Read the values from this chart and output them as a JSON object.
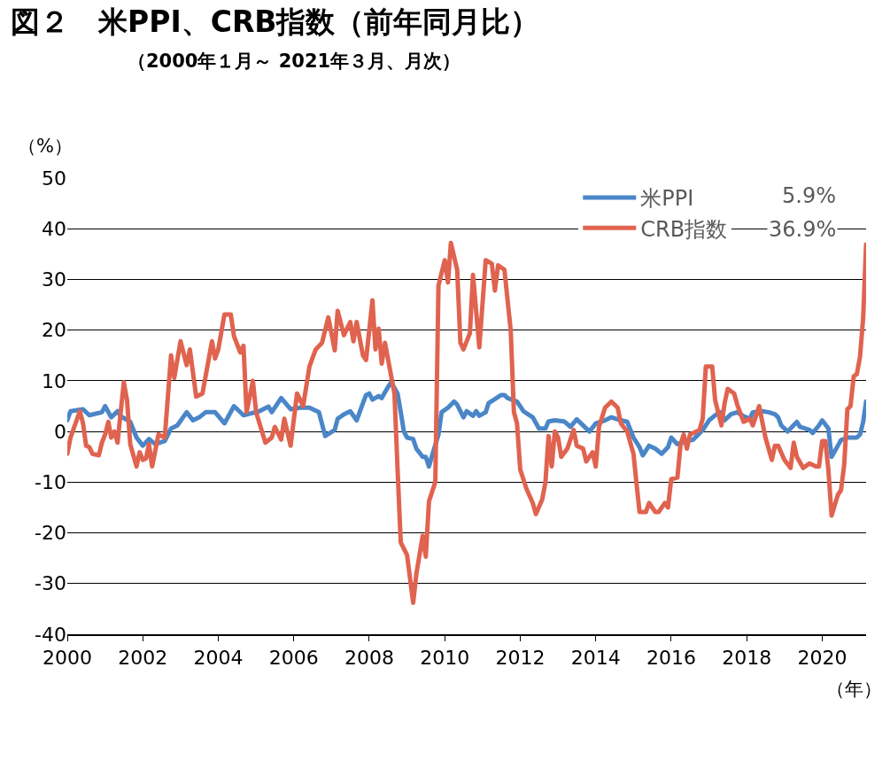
{
  "chart_data": {
    "type": "line",
    "title": "図２　米PPI、CRB指数（前年同月比）",
    "subtitle": "（2000年１月～ 2021年３月、月次）",
    "ylabel": "（%）",
    "xlabel": "（年）",
    "annotations": [
      "5.9%",
      "36.9%"
    ],
    "xlim": [
      "2000-01",
      "2021-03"
    ],
    "xticks": [
      "2000",
      "2002",
      "2004",
      "2006",
      "2008",
      "2010",
      "2012",
      "2014",
      "2016",
      "2018",
      "2020"
    ],
    "ylim": [
      -40,
      50
    ],
    "yticks": [
      -40,
      -30,
      -20,
      -10,
      0,
      10,
      20,
      30,
      40,
      50
    ],
    "grid": "y",
    "legend": "top right",
    "marker": "none",
    "line_style": "solid",
    "series": [
      {
        "name": "米PPI",
        "color": "#4a86c8",
        "x": [
          "2000-01",
          "2000-02",
          "2000-06",
          "2000-08",
          "2000-12",
          "2001-01",
          "2001-03",
          "2001-05",
          "2001-06",
          "2001-09",
          "2001-11",
          "2002-01",
          "2002-03",
          "2002-05",
          "2002-08",
          "2002-10",
          "2002-12",
          "2003-03",
          "2003-05",
          "2003-07",
          "2003-09",
          "2003-12",
          "2004-03",
          "2004-06",
          "2004-09",
          "2005-02",
          "2005-05",
          "2005-06",
          "2005-09",
          "2005-12",
          "2006-03",
          "2006-06",
          "2006-09",
          "2006-11",
          "2007-02",
          "2007-03",
          "2007-05",
          "2007-07",
          "2007-09",
          "2007-11",
          "2007-12",
          "2008-01",
          "2008-02",
          "2008-04",
          "2008-05",
          "2008-07",
          "2008-08",
          "2008-10",
          "2008-11",
          "2008-12",
          "2009-01",
          "2009-03",
          "2009-04",
          "2009-06",
          "2009-07",
          "2009-08",
          "2009-09",
          "2009-11",
          "2009-12",
          "2010-02",
          "2010-04",
          "2010-05",
          "2010-07",
          "2010-08",
          "2010-10",
          "2010-11",
          "2010-12",
          "2011-02",
          "2011-03",
          "2011-07",
          "2011-08",
          "2011-09",
          "2011-12",
          "2012-02",
          "2012-05",
          "2012-07",
          "2012-09",
          "2012-10",
          "2012-12",
          "2013-03",
          "2013-05",
          "2013-07",
          "2013-11",
          "2014-01",
          "2014-04",
          "2014-06",
          "2014-08",
          "2014-11",
          "2015-01",
          "2015-03",
          "2015-04",
          "2015-06",
          "2015-08",
          "2015-10",
          "2015-12",
          "2016-01",
          "2016-03",
          "2016-06",
          "2016-08",
          "2016-11",
          "2017-01",
          "2017-03",
          "2017-05",
          "2017-06",
          "2017-08",
          "2017-10",
          "2017-12",
          "2018-02",
          "2018-03",
          "2018-06",
          "2018-08",
          "2018-10",
          "2018-11",
          "2018-12",
          "2019-02",
          "2019-05",
          "2019-06",
          "2019-09",
          "2019-10",
          "2019-12",
          "2020-01",
          "2020-03",
          "2020-04",
          "2020-06",
          "2020-07",
          "2020-09",
          "2020-12",
          "2021-01",
          "2021-02",
          "2021-03"
        ],
        "values": [
          2.2,
          4,
          4.4,
          3.2,
          3.8,
          5,
          2.8,
          4,
          3,
          1.9,
          -1.2,
          -2.8,
          -1.5,
          -2.5,
          -1.9,
          0.6,
          1.2,
          3.8,
          2.2,
          2.8,
          3.8,
          3.8,
          1.6,
          5,
          3.2,
          4,
          4.9,
          3.8,
          6.6,
          4.4,
          4.7,
          4.7,
          3.8,
          -0.9,
          0.3,
          2.5,
          3.4,
          4,
          2.2,
          5.6,
          7.2,
          7.5,
          6.3,
          7,
          6.6,
          8.8,
          9.7,
          7.5,
          3.8,
          0,
          -1.2,
          -1.5,
          -3.4,
          -5,
          -5,
          -6.9,
          -4.7,
          -0.6,
          3.8,
          4.7,
          5.9,
          5.3,
          2.8,
          4,
          3.1,
          4,
          3.1,
          3.8,
          5.6,
          7.2,
          7.2,
          6.6,
          5.9,
          4,
          2.8,
          0.6,
          0.6,
          2,
          2.2,
          2,
          0.9,
          2.4,
          0,
          1.6,
          2.2,
          2.8,
          2.4,
          1.9,
          -1.2,
          -3.1,
          -4.7,
          -2.8,
          -3.4,
          -4.4,
          -3.1,
          -1.2,
          -2.5,
          -1.9,
          -1.6,
          0.3,
          2.2,
          3.2,
          3.8,
          2.2,
          3.4,
          3.8,
          3,
          2.5,
          3.8,
          4,
          3.8,
          3.4,
          2.8,
          1.2,
          0,
          1.9,
          0.9,
          0.3,
          -0.3,
          1.2,
          2.2,
          0.6,
          -5,
          -2.8,
          -1.7,
          -1.2,
          -1.2,
          -0.6,
          1.9,
          5.9
        ]
      },
      {
        "name": "CRB指数",
        "color": "#e0634f",
        "x": [
          "2000-01",
          "2000-02",
          "2000-05",
          "2000-06",
          "2000-07",
          "2000-08",
          "2000-09",
          "2000-11",
          "2000-12",
          "2001-01",
          "2001-02",
          "2001-03",
          "2001-04",
          "2001-05",
          "2001-07",
          "2001-08",
          "2001-09",
          "2001-11",
          "2001-12",
          "2002-01",
          "2002-02",
          "2002-03",
          "2002-04",
          "2002-06",
          "2002-08",
          "2002-10",
          "2002-11",
          "2003-01",
          "2003-03",
          "2003-04",
          "2003-06",
          "2003-08",
          "2003-11",
          "2003-12",
          "2004-01",
          "2004-03",
          "2004-05",
          "2004-06",
          "2004-08",
          "2004-09",
          "2004-10",
          "2004-12",
          "2005-01",
          "2005-04",
          "2005-06",
          "2005-07",
          "2005-09",
          "2005-10",
          "2005-12",
          "2006-02",
          "2006-04",
          "2006-06",
          "2006-08",
          "2006-10",
          "2006-12",
          "2007-02",
          "2007-03",
          "2007-05",
          "2007-07",
          "2007-08",
          "2007-09",
          "2007-11",
          "2007-12",
          "2008-02",
          "2008-03",
          "2008-04",
          "2008-05",
          "2008-06",
          "2008-09",
          "2008-10",
          "2008-11",
          "2009-01",
          "2009-03",
          "2009-04",
          "2009-06",
          "2009-07",
          "2009-08",
          "2009-10",
          "2009-11",
          "2010-01",
          "2010-02",
          "2010-03",
          "2010-05",
          "2010-06",
          "2010-07",
          "2010-09",
          "2010-10",
          "2010-12",
          "2011-02",
          "2011-04",
          "2011-05",
          "2011-06",
          "2011-08",
          "2011-10",
          "2011-11",
          "2011-12",
          "2012-01",
          "2012-03",
          "2012-05",
          "2012-06",
          "2012-08",
          "2012-09",
          "2012-10",
          "2012-11",
          "2012-12",
          "2013-01",
          "2013-02",
          "2013-04",
          "2013-06",
          "2013-07",
          "2013-09",
          "2013-10",
          "2013-12",
          "2014-01",
          "2014-02",
          "2014-04",
          "2014-06",
          "2014-08",
          "2014-09",
          "2014-11",
          "2014-12",
          "2015-01",
          "2015-02",
          "2015-03",
          "2015-05",
          "2015-06",
          "2015-08",
          "2015-09",
          "2015-11",
          "2015-12",
          "2016-01",
          "2016-03",
          "2016-04",
          "2016-05",
          "2016-06",
          "2016-07",
          "2016-10",
          "2016-11",
          "2016-12",
          "2017-02",
          "2017-03",
          "2017-05",
          "2017-06",
          "2017-07",
          "2017-09",
          "2017-10",
          "2017-12",
          "2018-02",
          "2018-03",
          "2018-05",
          "2018-07",
          "2018-09",
          "2018-10",
          "2018-11",
          "2019-01",
          "2019-03",
          "2019-04",
          "2019-05",
          "2019-07",
          "2019-09",
          "2019-11",
          "2019-12",
          "2020-01",
          "2020-02",
          "2020-03",
          "2020-04",
          "2020-06",
          "2020-07",
          "2020-08",
          "2020-09",
          "2020-10",
          "2020-11",
          "2020-12",
          "2021-01",
          "2021-02",
          "2021-03"
        ],
        "values": [
          -4.4,
          -1.2,
          4,
          1.6,
          -2.8,
          -3.1,
          -4.4,
          -4.7,
          -2.2,
          -0.6,
          1.9,
          -1.2,
          0,
          -2.2,
          9.7,
          6.2,
          -2.5,
          -6.9,
          -4.1,
          -5.6,
          -5.3,
          -2.5,
          -6.9,
          -0.6,
          -1.2,
          15,
          10.6,
          17.8,
          13.1,
          16.2,
          6.9,
          7.5,
          17.8,
          14.4,
          16.2,
          23.1,
          23.1,
          18.8,
          15.6,
          16.9,
          3.8,
          10,
          3.8,
          -2.2,
          -1.2,
          0.9,
          -1.6,
          2.5,
          -2.8,
          7.5,
          5,
          12.8,
          16.2,
          17.5,
          22.5,
          16,
          23.8,
          19,
          21.6,
          17.8,
          21.6,
          15,
          14.1,
          25.9,
          16.2,
          20.3,
          13.4,
          17.5,
          7.5,
          -7.5,
          -21.9,
          -24.4,
          -33.8,
          -28.1,
          -20.6,
          -24.7,
          -13.8,
          -10,
          28.8,
          33.8,
          29.4,
          37.2,
          31.9,
          17.5,
          16.2,
          19.4,
          30.9,
          16.6,
          33.8,
          33.1,
          27.8,
          32.8,
          31.9,
          20,
          3.8,
          1.6,
          -7.5,
          -11.3,
          -14.1,
          -16.3,
          -13.4,
          -10,
          -0.9,
          -6.9,
          0,
          -1.2,
          -5,
          -3.4,
          0.3,
          -2.8,
          -3.4,
          -5.9,
          -4.1,
          -6.9,
          0.9,
          4.7,
          5.9,
          4.7,
          1.6,
          0,
          -2.2,
          -4.4,
          -10.6,
          -15.9,
          -15.9,
          -14.1,
          -15.9,
          -15.9,
          -14.1,
          -15,
          -9.4,
          -9.1,
          -2.5,
          -0.6,
          -3.4,
          -0.6,
          0.3,
          2.5,
          12.8,
          12.8,
          6.2,
          1.2,
          5.6,
          8.4,
          7.5,
          5.3,
          1.9,
          2.5,
          1.2,
          5,
          -1.2,
          -5.6,
          -2.8,
          -2.8,
          -5.6,
          -7.2,
          -2.2,
          -5,
          -7.2,
          -6.3,
          -6.9,
          -6.9,
          -1.9,
          -1.9,
          -7.5,
          -16.6,
          -12.5,
          -11.6,
          -6.6,
          4.4,
          5,
          10.9,
          11.3,
          14.7,
          22.5,
          36.9
        ]
      }
    ]
  }
}
